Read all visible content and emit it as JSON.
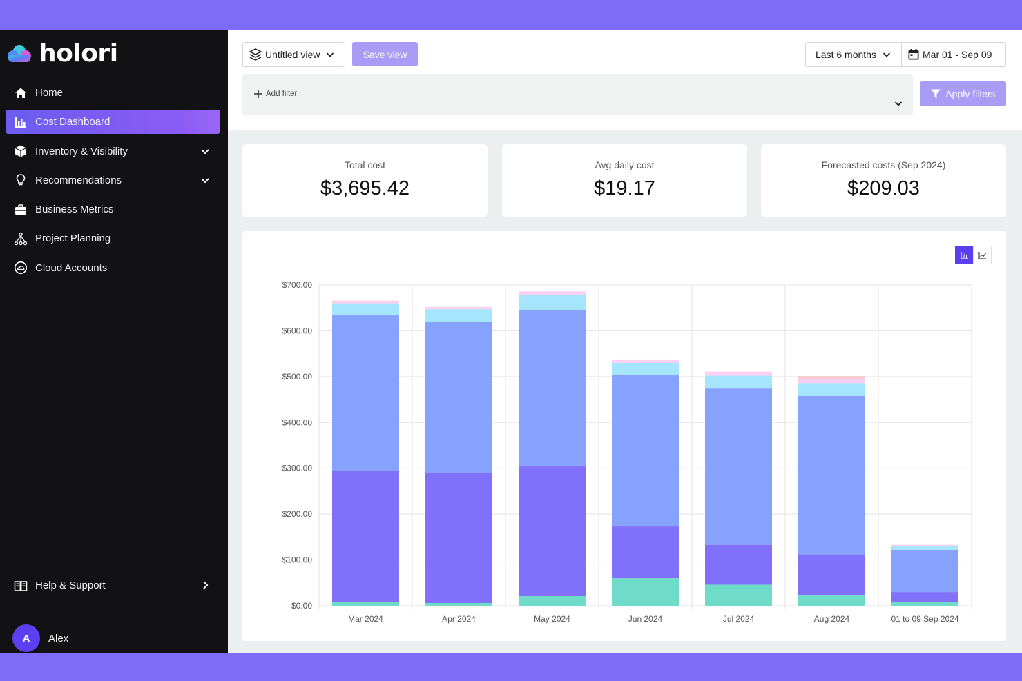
{
  "brand": {
    "name": "holori"
  },
  "sidebar": {
    "items": [
      {
        "label": "Home",
        "icon": "home-icon"
      },
      {
        "label": "Cost Dashboard",
        "icon": "bar-chart-icon",
        "active": true
      },
      {
        "label": "Inventory & Visibility",
        "icon": "box-icon",
        "expandable": true
      },
      {
        "label": "Recommendations",
        "icon": "lightbulb-icon",
        "expandable": true
      },
      {
        "label": "Business Metrics",
        "icon": "briefcase-icon"
      },
      {
        "label": "Project Planning",
        "icon": "network-icon"
      },
      {
        "label": "Cloud Accounts",
        "icon": "cloud-circle-icon"
      }
    ],
    "help": {
      "label": "Help & Support",
      "icon": "book-icon"
    },
    "user": {
      "initial": "A",
      "name": "Alex"
    }
  },
  "toolbar": {
    "view_label": "Untitled view",
    "save_label": "Save view",
    "range_label": "Last 6 months",
    "date_label": "Mar 01 - Sep 09",
    "add_filter_label": "Add filter",
    "apply_label": "Apply filters"
  },
  "kpis": [
    {
      "label": "Total cost",
      "value": "$3,695.42"
    },
    {
      "label": "Avg daily cost",
      "value": "$19.17"
    },
    {
      "label": "Forecasted costs (Sep 2024)",
      "value": "$209.03"
    }
  ],
  "colors": {
    "accent": "#5b3ff0",
    "sidebar_bg": "#121214",
    "series": [
      "#6edcc8",
      "#8170fa",
      "#86a2fd",
      "#a6e6fc",
      "#fcd0f0",
      "#f9c9c9"
    ]
  },
  "chart_data": {
    "type": "bar",
    "stacked": true,
    "categories": [
      "Mar 2024",
      "Apr 2024",
      "May 2024",
      "Jun 2024",
      "Jul 2024",
      "Aug 2024",
      "01 to 09 Sep 2024"
    ],
    "ylim": [
      0,
      700
    ],
    "yticks": [
      "$0.00",
      "$100.00",
      "$200.00",
      "$300.00",
      "$400.00",
      "$500.00",
      "$600.00",
      "$700.00"
    ],
    "grid": true,
    "series": [
      {
        "values": [
          9,
          6,
          21,
          60,
          46,
          24,
          8
        ]
      },
      {
        "values": [
          286,
          283,
          283,
          113,
          87,
          88,
          22
        ]
      },
      {
        "values": [
          340,
          330,
          341,
          330,
          341,
          346,
          92
        ]
      },
      {
        "values": [
          25,
          28,
          33,
          27,
          28,
          28,
          8
        ]
      },
      {
        "values": [
          6,
          5,
          8,
          6,
          9,
          10,
          3
        ]
      },
      {
        "values": [
          0,
          0,
          0,
          0,
          0,
          5,
          0
        ]
      }
    ]
  }
}
